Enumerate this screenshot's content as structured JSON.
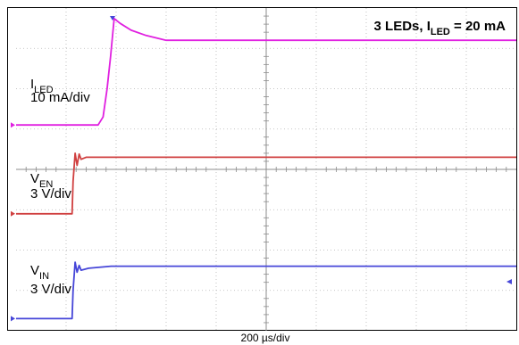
{
  "chart_data": {
    "type": "line",
    "title": "3 LEDs, I_LED = 20 mA",
    "title_parts": {
      "prefix": "3 LEDs, I",
      "sub": "LED",
      "suffix": " = 20 mA"
    },
    "xlabel": "200 µs/div",
    "grid": true,
    "divisions": {
      "x": 10,
      "y": 8
    },
    "series": [
      {
        "name": "ILED",
        "label_main": "I",
        "label_sub": "LED",
        "scale": "10 mA/div",
        "color": "#e020e0",
        "level_divs": 7.2,
        "points": [
          [
            0,
            5.1
          ],
          [
            1.64,
            5.1
          ],
          [
            1.74,
            5.3
          ],
          [
            1.82,
            6.0
          ],
          [
            1.89,
            6.8
          ],
          [
            1.96,
            7.74
          ],
          [
            2.08,
            7.62
          ],
          [
            2.3,
            7.45
          ],
          [
            2.6,
            7.32
          ],
          [
            3.0,
            7.2
          ],
          [
            10,
            7.2
          ]
        ]
      },
      {
        "name": "VEN",
        "label_main": "V",
        "label_sub": "EN",
        "scale": "3 V/div",
        "color": "#d04040",
        "level_divs": 4.3,
        "points": [
          [
            0,
            2.9
          ],
          [
            1.12,
            2.9
          ],
          [
            1.14,
            3.7
          ],
          [
            1.18,
            4.4
          ],
          [
            1.22,
            4.1
          ],
          [
            1.26,
            4.38
          ],
          [
            1.3,
            4.25
          ],
          [
            1.4,
            4.3
          ],
          [
            10,
            4.3
          ]
        ]
      },
      {
        "name": "VIN",
        "label_main": "V",
        "label_sub": "IN",
        "scale": "3 V/div",
        "color": "#4646d8",
        "level_divs": 1.6,
        "points": [
          [
            0,
            0.3
          ],
          [
            1.12,
            0.3
          ],
          [
            1.14,
            1.0
          ],
          [
            1.18,
            1.7
          ],
          [
            1.22,
            1.45
          ],
          [
            1.26,
            1.62
          ],
          [
            1.3,
            1.5
          ],
          [
            1.45,
            1.55
          ],
          [
            1.9,
            1.6
          ],
          [
            10,
            1.6
          ]
        ]
      }
    ]
  }
}
